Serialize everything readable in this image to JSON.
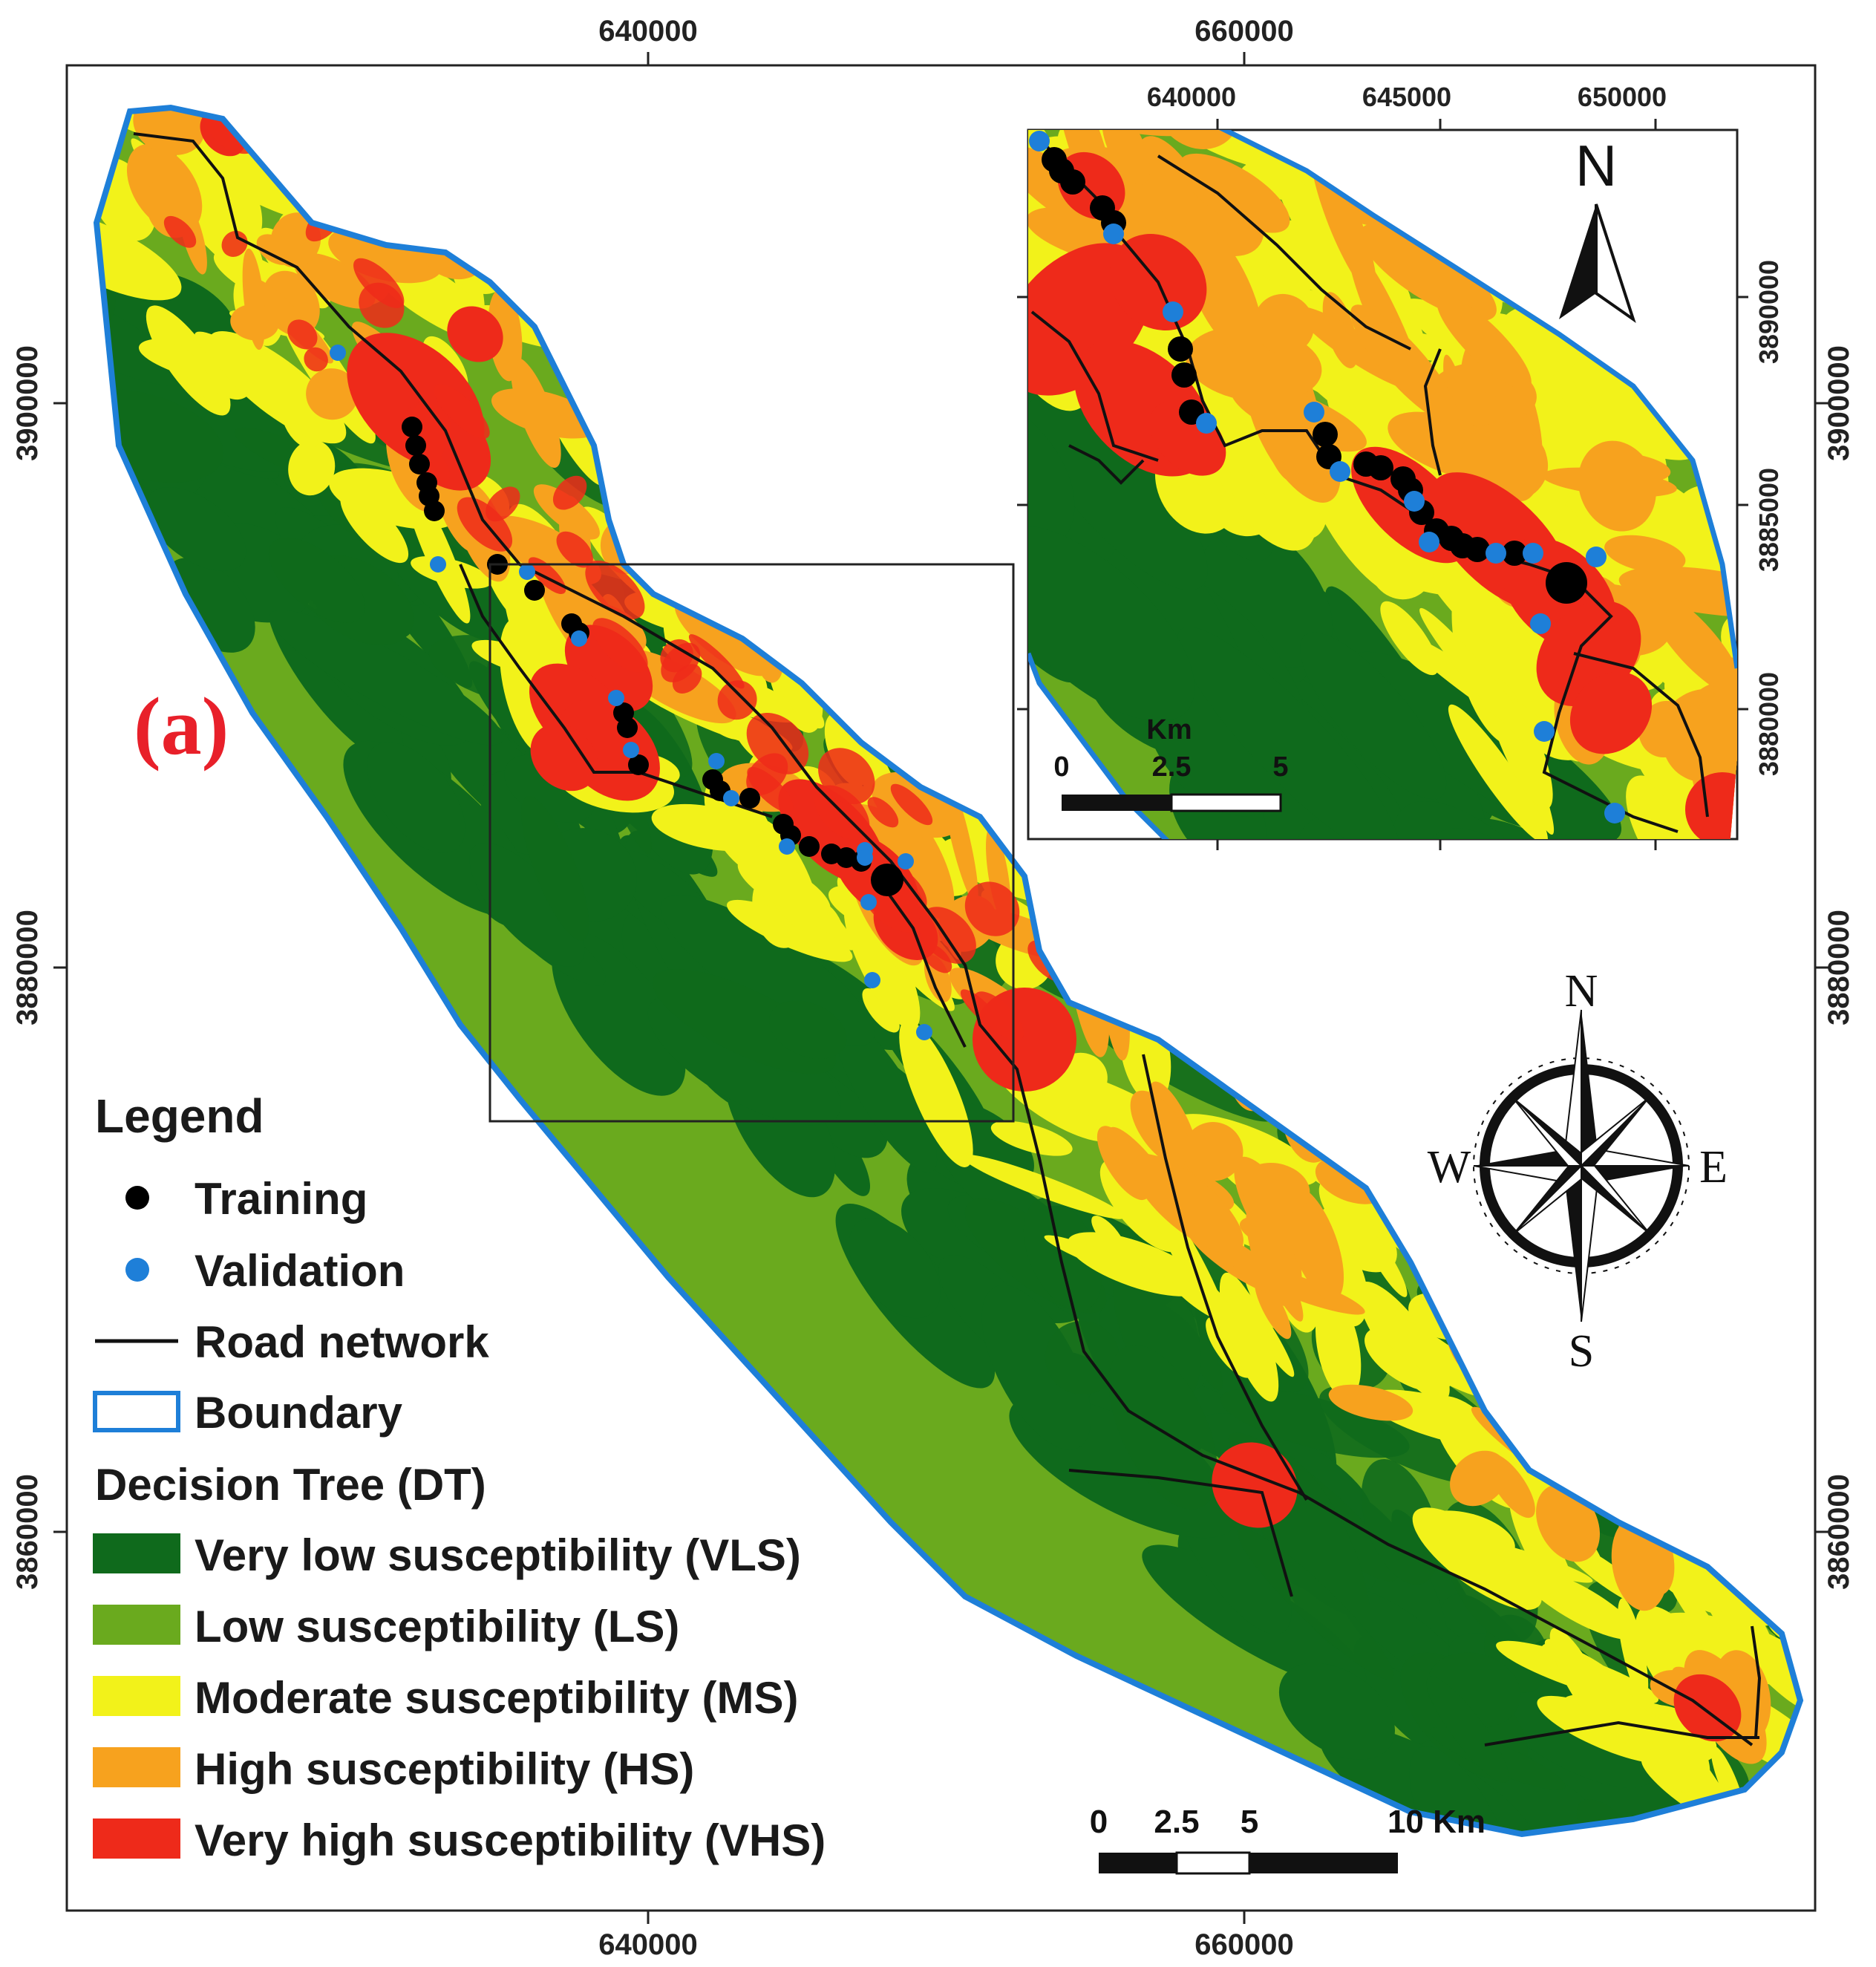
{
  "panel_label": "(a)",
  "axes": {
    "top_x": [
      "640000",
      "660000"
    ],
    "bottom_x": [
      "640000",
      "660000"
    ],
    "left_y": [
      "3900000",
      "3880000",
      "3860000"
    ],
    "right_y": [
      "3900000",
      "3880000",
      "3860000"
    ]
  },
  "legend": {
    "title": "Legend",
    "items": [
      {
        "label": "Training",
        "symbol": "black-dot",
        "color": "#000000"
      },
      {
        "label": "Validation",
        "symbol": "blue-dot",
        "color": "#1e7fd8"
      },
      {
        "label": "Road network",
        "symbol": "line",
        "color": "#000000"
      },
      {
        "label": "Boundary",
        "symbol": "outline-box",
        "color": "#1e7fd8"
      }
    ],
    "dt_title": "Decision Tree (DT)",
    "classes": [
      {
        "label": "Very low susceptibility (VLS)",
        "color": "#0f6a1c"
      },
      {
        "label": "Low susceptibility (LS)",
        "color": "#6aaa1e"
      },
      {
        "label": "Moderate susceptibility (MS)",
        "color": "#f2f21a"
      },
      {
        "label": "High susceptibility (HS)",
        "color": "#f7a21e"
      },
      {
        "label": "Very high susceptibility (VHS)",
        "color": "#ee2a1a"
      }
    ]
  },
  "compass": {
    "n": "N",
    "s": "S",
    "e": "E",
    "w": "W"
  },
  "scale_bar": {
    "labels": [
      "0",
      "2.5",
      "5",
      "10 Km"
    ]
  },
  "inset": {
    "top_x": [
      "640000",
      "645000",
      "650000"
    ],
    "right_y": [
      "3890000",
      "3885000",
      "3880000"
    ],
    "north": "N",
    "scale_unit": "Km",
    "scale_labels": [
      "0",
      "2.5",
      "5"
    ]
  }
}
